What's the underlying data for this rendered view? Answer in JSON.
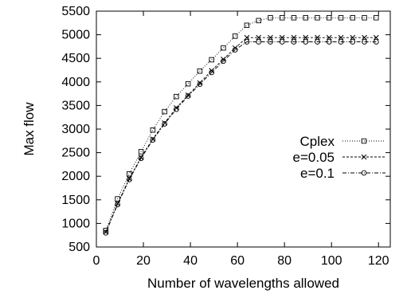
{
  "chart_data": {
    "type": "line",
    "xlabel": "Number of wavelengths allowed",
    "ylabel": "Max flow",
    "xlim": [
      0,
      125
    ],
    "ylim": [
      500,
      5500
    ],
    "xticks": [
      "0",
      "20",
      "40",
      "60",
      "80",
      "100",
      "120"
    ],
    "yticks": [
      "500",
      "1000",
      "1500",
      "2000",
      "2500",
      "3000",
      "3500",
      "4000",
      "4500",
      "5000",
      "5500"
    ],
    "grid": false,
    "legend_position": "right-middle",
    "x": [
      4,
      9,
      14,
      19,
      24,
      29,
      34,
      39,
      44,
      49,
      54,
      59,
      64,
      69,
      74,
      79,
      84,
      89,
      94,
      99,
      104,
      109,
      114,
      119
    ],
    "series": [
      {
        "name": "Cplex",
        "marker": "square",
        "dash": "1,2",
        "values": [
          850,
          1520,
          2050,
          2520,
          2980,
          3370,
          3690,
          3960,
          4230,
          4470,
          4720,
          4970,
          5200,
          5300,
          5360,
          5360,
          5360,
          5360,
          5360,
          5360,
          5360,
          5360,
          5360,
          5360
        ]
      },
      {
        "name": "e=0.05",
        "marker": "x",
        "dash": "3,2",
        "values": [
          820,
          1420,
          1950,
          2400,
          2790,
          3130,
          3450,
          3720,
          3980,
          4240,
          4480,
          4720,
          4940,
          4940,
          4940,
          4940,
          4940,
          4940,
          4940,
          4940,
          4940,
          4940,
          4940,
          4940
        ]
      },
      {
        "name": "e=0.1",
        "marker": "circle",
        "dash": "5,2,1,2",
        "values": [
          800,
          1400,
          1930,
          2380,
          2770,
          3110,
          3420,
          3700,
          3950,
          4200,
          4440,
          4680,
          4850,
          4850,
          4850,
          4850,
          4850,
          4850,
          4850,
          4850,
          4850,
          4850,
          4850,
          4850
        ]
      }
    ]
  }
}
